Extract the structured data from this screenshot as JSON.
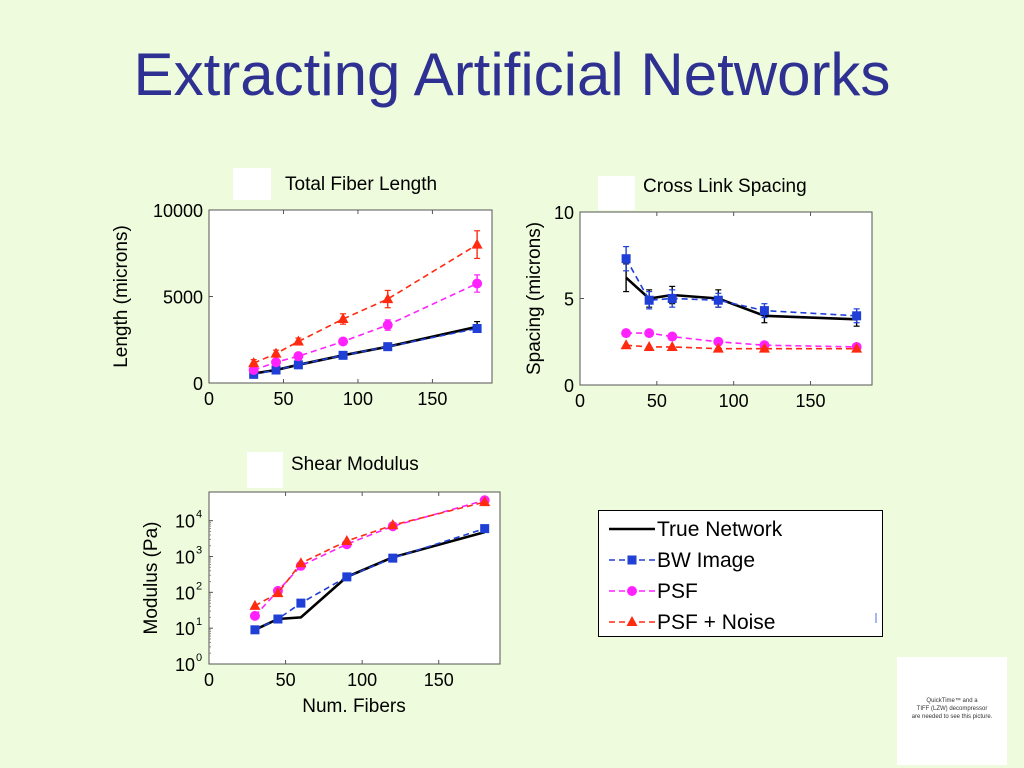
{
  "slide": {
    "title": "Extracting Artificial Networks"
  },
  "quicktime_notice": {
    "line1": "QuickTime™ and a",
    "line2": "TIFF (LZW) decompressor",
    "line3": "are needed to see this picture."
  },
  "colors": {
    "true": "#000000",
    "bw": "#1f3fd6",
    "psf": "#ff22ff",
    "noise": "#ff2a10",
    "title": "#2e3192"
  },
  "legend": [
    {
      "label": "True Network",
      "key": "true",
      "marker": "none",
      "dash": "solid"
    },
    {
      "label": "BW Image",
      "key": "bw",
      "marker": "square",
      "dash": "dashed"
    },
    {
      "label": "PSF",
      "key": "psf",
      "marker": "circle",
      "dash": "dashed"
    },
    {
      "label": "PSF + Noise",
      "key": "noise",
      "marker": "triangle",
      "dash": "dashed"
    }
  ],
  "chart_data": [
    {
      "id": "length",
      "type": "line",
      "title": "Total Fiber Length",
      "ylabel": "Length (microns)",
      "xlabel": "",
      "xlim": [
        0,
        190
      ],
      "ylim": [
        0,
        10000
      ],
      "xticks": [
        "0",
        "50",
        "100",
        "150"
      ],
      "yticks": [
        "0",
        "5000",
        "10000"
      ],
      "x": [
        30,
        45,
        60,
        90,
        120,
        180
      ],
      "series": [
        {
          "name": "True Network",
          "key": "true",
          "values": [
            550,
            750,
            1050,
            1600,
            2100,
            3250
          ],
          "err": [
            150,
            150,
            150,
            150,
            200,
            300
          ]
        },
        {
          "name": "BW Image",
          "key": "bw",
          "values": [
            500,
            750,
            1050,
            1600,
            2100,
            3150
          ],
          "err": [
            0,
            0,
            0,
            0,
            0,
            0
          ]
        },
        {
          "name": "PSF",
          "key": "psf",
          "values": [
            750,
            1200,
            1550,
            2400,
            3350,
            5750
          ],
          "err": [
            0,
            0,
            0,
            0,
            300,
            500
          ]
        },
        {
          "name": "PSF + Noise",
          "key": "noise",
          "values": [
            1150,
            1700,
            2400,
            3700,
            4850,
            8000
          ],
          "err": [
            200,
            200,
            200,
            300,
            500,
            800
          ]
        }
      ]
    },
    {
      "id": "spacing",
      "type": "line",
      "title": "Cross Link Spacing",
      "ylabel": "Spacing (microns)",
      "xlabel": "",
      "xlim": [
        0,
        190
      ],
      "ylim": [
        0,
        10
      ],
      "xticks": [
        "0",
        "50",
        "100",
        "150"
      ],
      "yticks": [
        "0",
        "5",
        "10"
      ],
      "x": [
        30,
        45,
        60,
        90,
        120,
        180
      ],
      "series": [
        {
          "name": "True Network",
          "key": "true",
          "values": [
            6.2,
            5.0,
            5.2,
            5.0,
            4.0,
            3.8
          ],
          "err": [
            0.8,
            0.5,
            0.5,
            0.5,
            0.4,
            0.4
          ]
        },
        {
          "name": "BW Image",
          "key": "bw",
          "values": [
            7.3,
            4.9,
            5.0,
            4.9,
            4.3,
            4.0
          ],
          "err": [
            0.7,
            0.5,
            0.5,
            0.4,
            0.4,
            0.4
          ]
        },
        {
          "name": "PSF",
          "key": "psf",
          "values": [
            3.0,
            3.0,
            2.8,
            2.5,
            2.3,
            2.2
          ],
          "err": [
            0,
            0,
            0,
            0,
            0,
            0
          ]
        },
        {
          "name": "PSF + Noise",
          "key": "noise",
          "values": [
            2.3,
            2.2,
            2.2,
            2.1,
            2.1,
            2.1
          ],
          "err": [
            0,
            0,
            0,
            0,
            0,
            0
          ]
        }
      ]
    },
    {
      "id": "modulus",
      "type": "line",
      "title": "Shear Modulus",
      "ylabel": "Modulus (Pa)",
      "xlabel": "Num. Fibers",
      "yscale": "log",
      "xlim": [
        0,
        190
      ],
      "ylim_log": [
        0,
        4.8
      ],
      "xticks": [
        "0",
        "50",
        "100",
        "150"
      ],
      "yticks": [
        "10",
        "10",
        "10",
        "10",
        "10"
      ],
      "yticks_exp": [
        "0",
        "1",
        "2",
        "3",
        "4"
      ],
      "x": [
        30,
        45,
        60,
        90,
        120,
        180
      ],
      "series": [
        {
          "name": "True Network",
          "key": "true",
          "values": [
            9,
            18,
            20,
            270,
            950,
            4800
          ],
          "err": [
            0,
            0,
            0,
            0,
            0,
            0
          ]
        },
        {
          "name": "BW Image",
          "key": "bw",
          "values": [
            9,
            18,
            50,
            270,
            900,
            6000
          ],
          "err": [
            0,
            0,
            0,
            0,
            0,
            0
          ]
        },
        {
          "name": "PSF",
          "key": "psf",
          "values": [
            22,
            110,
            550,
            2200,
            7000,
            37000
          ],
          "err": [
            0,
            0,
            0,
            0,
            0,
            0
          ]
        },
        {
          "name": "PSF + Noise",
          "key": "noise",
          "values": [
            42,
            95,
            650,
            2700,
            7500,
            33000
          ],
          "err": [
            0,
            0,
            0,
            0,
            0,
            0
          ]
        }
      ]
    }
  ]
}
